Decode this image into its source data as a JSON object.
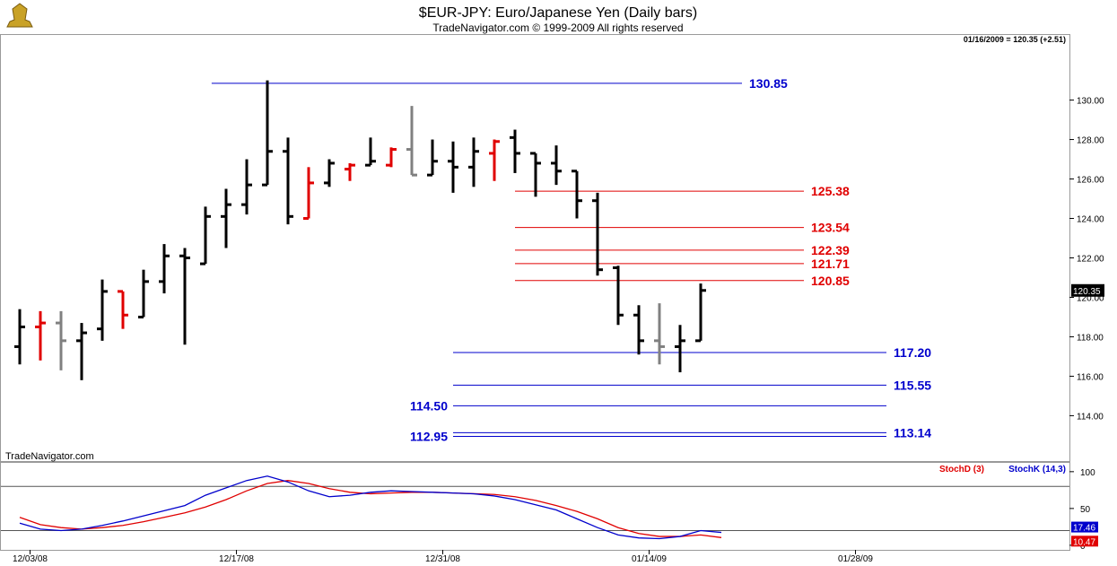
{
  "header": {
    "title": "$EUR-JPY:  Euro/Japanese Yen  (Daily bars)",
    "copyright": "TradeNavigator.com © 1999-2009 All rights reserved",
    "quote": "01/16/2009 = 120.35 (+2.51)",
    "watermark": "TradeNavigator.com"
  },
  "colors": {
    "up": "#000000",
    "down": "#e00000",
    "neutral": "#808080",
    "blue_level": "#0000cc",
    "red_level": "#e00000",
    "stoch_d": "#e00000",
    "stoch_k": "#0000cc"
  },
  "chart_data": [
    {
      "type": "ohlc",
      "title": "$EUR-JPY:  Euro/Japanese Yen  (Daily bars)",
      "ylim": [
        111.7,
        133.3
      ],
      "yticks": [
        114,
        116,
        118,
        120,
        122,
        124,
        126,
        128,
        130
      ],
      "ytick_labels": [
        "114.00",
        "116.00",
        "118.00",
        "120.00",
        "122.00",
        "124.00",
        "126.00",
        "128.00",
        "130.00"
      ],
      "last_price_label": "120.35",
      "last_price": 120.35,
      "x_dates": [
        "12/03/08",
        "12/17/08",
        "12/31/08",
        "01/14/09",
        "01/28/09"
      ],
      "x_date_index": [
        0.5,
        10.5,
        20.5,
        30.5,
        40.5
      ],
      "bars": [
        {
          "o": 117.5,
          "h": 119.4,
          "l": 116.6,
          "c": 118.5,
          "col": "up"
        },
        {
          "o": 118.5,
          "h": 119.3,
          "l": 116.8,
          "c": 118.7,
          "col": "down"
        },
        {
          "o": 118.7,
          "h": 119.3,
          "l": 116.3,
          "c": 117.8,
          "col": "neutral"
        },
        {
          "o": 117.8,
          "h": 118.7,
          "l": 115.8,
          "c": 118.2,
          "col": "up"
        },
        {
          "o": 118.4,
          "h": 120.9,
          "l": 117.8,
          "c": 120.3,
          "col": "up"
        },
        {
          "o": 120.3,
          "h": 120.3,
          "l": 118.4,
          "c": 119.1,
          "col": "down"
        },
        {
          "o": 119.0,
          "h": 121.4,
          "l": 119.0,
          "c": 120.8,
          "col": "up"
        },
        {
          "o": 120.8,
          "h": 122.7,
          "l": 120.2,
          "c": 122.1,
          "col": "up"
        },
        {
          "o": 122.1,
          "h": 122.5,
          "l": 117.6,
          "c": 122.0,
          "col": "up"
        },
        {
          "o": 121.7,
          "h": 124.6,
          "l": 121.7,
          "c": 124.1,
          "col": "up"
        },
        {
          "o": 124.1,
          "h": 125.5,
          "l": 122.5,
          "c": 124.7,
          "col": "up"
        },
        {
          "o": 124.7,
          "h": 127.0,
          "l": 124.2,
          "c": 125.7,
          "col": "up"
        },
        {
          "o": 125.7,
          "h": 131.0,
          "l": 125.7,
          "c": 127.4,
          "col": "up"
        },
        {
          "o": 127.4,
          "h": 128.1,
          "l": 123.7,
          "c": 124.1,
          "col": "up"
        },
        {
          "o": 124.0,
          "h": 126.6,
          "l": 124.0,
          "c": 125.8,
          "col": "down"
        },
        {
          "o": 125.8,
          "h": 127.0,
          "l": 125.6,
          "c": 126.8,
          "col": "up"
        },
        {
          "o": 126.5,
          "h": 126.8,
          "l": 125.9,
          "c": 126.7,
          "col": "down"
        },
        {
          "o": 126.7,
          "h": 128.1,
          "l": 126.7,
          "c": 126.9,
          "col": "up"
        },
        {
          "o": 126.7,
          "h": 127.6,
          "l": 126.6,
          "c": 127.5,
          "col": "down"
        },
        {
          "o": 127.5,
          "h": 129.7,
          "l": 126.2,
          "c": 126.2,
          "col": "neutral"
        },
        {
          "o": 126.2,
          "h": 128.0,
          "l": 126.2,
          "c": 126.9,
          "col": "up"
        },
        {
          "o": 126.9,
          "h": 127.9,
          "l": 125.3,
          "c": 126.6,
          "col": "up"
        },
        {
          "o": 126.6,
          "h": 128.1,
          "l": 125.6,
          "c": 127.4,
          "col": "up"
        },
        {
          "o": 127.3,
          "h": 128.0,
          "l": 125.9,
          "c": 127.9,
          "col": "down"
        },
        {
          "o": 128.1,
          "h": 128.5,
          "l": 126.3,
          "c": 127.3,
          "col": "up"
        },
        {
          "o": 127.3,
          "h": 127.3,
          "l": 125.1,
          "c": 126.8,
          "col": "up"
        },
        {
          "o": 126.8,
          "h": 127.7,
          "l": 125.7,
          "c": 126.4,
          "col": "up"
        },
        {
          "o": 126.4,
          "h": 126.4,
          "l": 124.0,
          "c": 124.9,
          "col": "up"
        },
        {
          "o": 124.9,
          "h": 125.3,
          "l": 121.1,
          "c": 121.4,
          "col": "up"
        },
        {
          "o": 121.5,
          "h": 121.6,
          "l": 118.6,
          "c": 119.1,
          "col": "up"
        },
        {
          "o": 119.1,
          "h": 119.6,
          "l": 117.1,
          "c": 117.8,
          "col": "up"
        },
        {
          "o": 117.8,
          "h": 119.7,
          "l": 116.6,
          "c": 117.5,
          "col": "neutral"
        },
        {
          "o": 117.5,
          "h": 118.6,
          "l": 116.2,
          "c": 117.8,
          "col": "up"
        },
        {
          "o": 117.8,
          "h": 120.7,
          "l": 117.8,
          "c": 120.35,
          "col": "up"
        }
      ],
      "levels": [
        {
          "label": "130.85",
          "value": 130.85,
          "color": "blue",
          "from": 9.3,
          "to": 35.0,
          "label_side": "right"
        },
        {
          "label": "125.38",
          "value": 125.38,
          "color": "red",
          "from": 24.0,
          "to": 38.0,
          "label_side": "right"
        },
        {
          "label": "123.54",
          "value": 123.54,
          "color": "red",
          "from": 24.0,
          "to": 38.0,
          "label_side": "right"
        },
        {
          "label": "122.39",
          "value": 122.39,
          "color": "red",
          "from": 24.0,
          "to": 38.0,
          "label_side": "right"
        },
        {
          "label": "121.71",
          "value": 121.71,
          "color": "red",
          "from": 24.0,
          "to": 38.0,
          "label_side": "right"
        },
        {
          "label": "120.85",
          "value": 120.85,
          "color": "red",
          "from": 24.0,
          "to": 38.0,
          "label_side": "right"
        },
        {
          "label": "117.20",
          "value": 117.2,
          "color": "blue",
          "from": 21.0,
          "to": 42.0,
          "label_side": "right"
        },
        {
          "label": "115.55",
          "value": 115.55,
          "color": "blue",
          "from": 21.0,
          "to": 42.0,
          "label_side": "right"
        },
        {
          "label": "114.50",
          "value": 114.5,
          "color": "blue",
          "from": 21.0,
          "to": 42.0,
          "label_side": "left"
        },
        {
          "label": "113.14",
          "value": 113.14,
          "color": "blue",
          "from": 21.0,
          "to": 42.0,
          "label_side": "right"
        },
        {
          "label": "112.95",
          "value": 112.95,
          "color": "blue",
          "from": 21.0,
          "to": 42.0,
          "label_side": "left"
        }
      ]
    },
    {
      "type": "line",
      "legend": [
        "StochD (3)",
        "StochK (14,3)"
      ],
      "ylim": [
        -5,
        112
      ],
      "yticks": [
        0,
        50,
        100
      ],
      "ytick_labels": [
        "0",
        "50",
        "100"
      ],
      "reference_lines": [
        20,
        80
      ],
      "last_value_labels": [
        "17.46",
        "10.47"
      ],
      "series": [
        {
          "name": "StochD (3)",
          "color": "red",
          "values": [
            38,
            28,
            24,
            22,
            24,
            27,
            32,
            38,
            44,
            52,
            62,
            74,
            84,
            88,
            84,
            77,
            72,
            70,
            71,
            72,
            72,
            71,
            70,
            69,
            66,
            61,
            54,
            46,
            36,
            24,
            16,
            12,
            12,
            14,
            10.47
          ]
        },
        {
          "name": "StochK (14,3)",
          "color": "blue",
          "values": [
            30,
            22,
            20,
            22,
            27,
            33,
            40,
            47,
            54,
            68,
            78,
            88,
            94,
            86,
            74,
            66,
            68,
            72,
            74,
            73,
            72,
            71,
            70,
            67,
            62,
            55,
            48,
            36,
            24,
            14,
            10,
            9,
            12,
            20,
            17.46
          ]
        }
      ]
    }
  ]
}
